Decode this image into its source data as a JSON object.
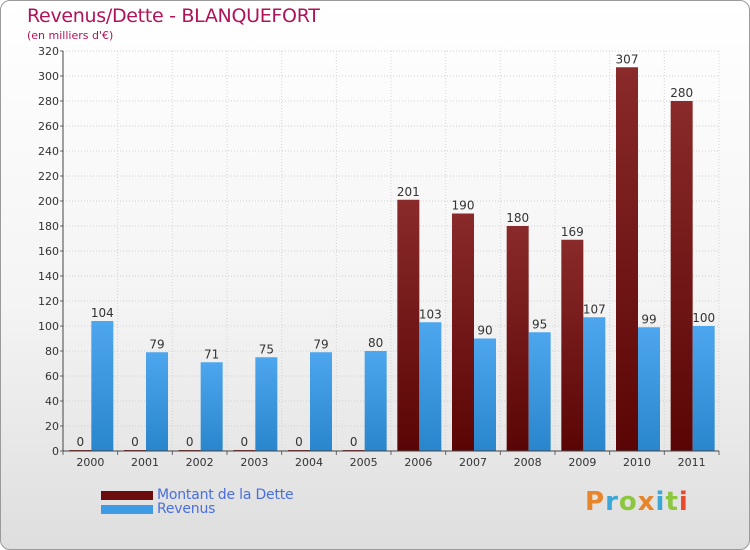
{
  "title": "Revenus/Dette - BLANQUEFORT",
  "subtitle": "(en milliers d'€)",
  "chart_data": {
    "type": "bar",
    "categories": [
      "2000",
      "2001",
      "2002",
      "2003",
      "2004",
      "2005",
      "2006",
      "2007",
      "2008",
      "2009",
      "2010",
      "2011"
    ],
    "series": [
      {
        "name": "Montant de la Dette",
        "values": [
          0,
          0,
          0,
          0,
          0,
          0,
          201,
          190,
          180,
          169,
          307,
          280
        ],
        "color": "#7a1a1a"
      },
      {
        "name": "Revenus",
        "values": [
          104,
          79,
          71,
          75,
          79,
          80,
          103,
          90,
          95,
          107,
          99,
          100
        ],
        "color": "#3d9ae4"
      }
    ],
    "ylim": [
      0,
      320
    ],
    "yticks": [
      0,
      20,
      40,
      60,
      80,
      100,
      120,
      140,
      160,
      180,
      200,
      220,
      240,
      260,
      280,
      300,
      320
    ],
    "grid": true,
    "xlabel": "",
    "ylabel": ""
  },
  "legend": {
    "items": [
      {
        "label": "Montant de la Dette",
        "color": "#6b0d0d"
      },
      {
        "label": "Revenus",
        "color": "#3d9ae4"
      }
    ]
  },
  "logo": {
    "letters": [
      "P",
      "r",
      "o",
      "x",
      "i",
      "t",
      "i"
    ],
    "colors": [
      "#e8842a",
      "#3aa7d8",
      "#8dc63f",
      "#e8842a",
      "#3aa7d8",
      "#8dc63f",
      "#e84a2a"
    ]
  }
}
